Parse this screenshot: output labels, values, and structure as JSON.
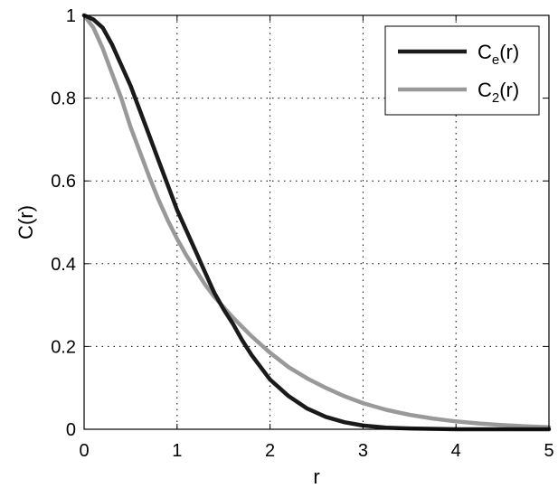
{
  "chart_data": {
    "type": "line",
    "xlabel": "r",
    "ylabel": "C(r)",
    "xlim": [
      0,
      5
    ],
    "ylim": [
      0,
      1
    ],
    "xticks": [
      "0",
      "1",
      "2",
      "3",
      "4",
      "5"
    ],
    "yticks": [
      "0",
      "0.2",
      "0.4",
      "0.6",
      "0.8",
      "1"
    ],
    "grid": true,
    "legend_position": "top-right",
    "series": [
      {
        "name": "C",
        "name_sub": "e",
        "name_suffix": "(r)",
        "color": "#1a1a1a",
        "x": [
          0,
          0.1,
          0.2,
          0.3,
          0.4,
          0.5,
          0.6,
          0.7,
          0.8,
          0.9,
          1.0,
          1.1,
          1.2,
          1.3,
          1.4,
          1.5,
          1.6,
          1.7,
          1.8,
          1.9,
          2.0,
          2.2,
          2.4,
          2.6,
          2.8,
          3.0,
          3.25,
          3.5,
          4.0,
          4.5,
          5.0
        ],
        "y": [
          1.0,
          0.99,
          0.97,
          0.93,
          0.88,
          0.83,
          0.77,
          0.71,
          0.65,
          0.59,
          0.53,
          0.48,
          0.43,
          0.38,
          0.33,
          0.29,
          0.255,
          0.215,
          0.18,
          0.15,
          0.12,
          0.08,
          0.05,
          0.03,
          0.017,
          0.009,
          0.004,
          0.002,
          0.0,
          0.0,
          0.0
        ]
      },
      {
        "name": "C",
        "name_sub": "2",
        "name_suffix": "(r)",
        "color": "#999999",
        "x": [
          0,
          0.1,
          0.2,
          0.3,
          0.4,
          0.5,
          0.6,
          0.7,
          0.8,
          0.9,
          1.0,
          1.1,
          1.2,
          1.3,
          1.4,
          1.5,
          1.6,
          1.8,
          2.0,
          2.2,
          2.4,
          2.6,
          2.8,
          3.0,
          3.25,
          3.5,
          3.75,
          4.0,
          4.25,
          4.5,
          4.75,
          5.0
        ],
        "y": [
          1.0,
          0.97,
          0.92,
          0.86,
          0.8,
          0.73,
          0.67,
          0.61,
          0.555,
          0.505,
          0.46,
          0.42,
          0.385,
          0.35,
          0.32,
          0.295,
          0.27,
          0.225,
          0.185,
          0.15,
          0.123,
          0.1,
          0.08,
          0.063,
          0.047,
          0.035,
          0.026,
          0.019,
          0.014,
          0.01,
          0.007,
          0.005
        ]
      }
    ]
  }
}
